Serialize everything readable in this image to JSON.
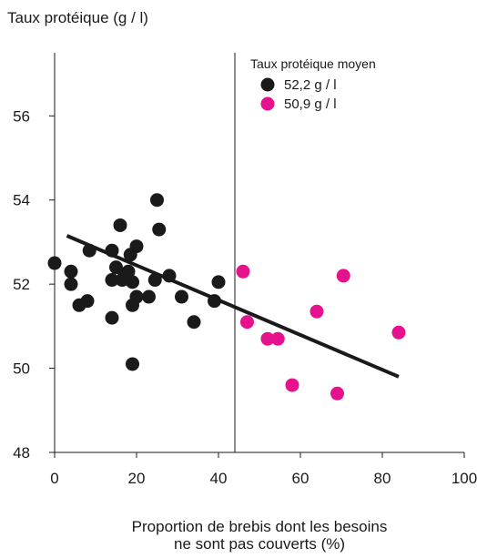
{
  "chart_data": {
    "type": "scatter",
    "ylabel": "Taux protéique (g / l)",
    "xlabel_lines": [
      "Proportion de brebis dont les besoins",
      "ne sont pas couverts (%)"
    ],
    "xlim": [
      0,
      100
    ],
    "ylim": [
      48,
      57.5
    ],
    "x_ticks": [
      0,
      20,
      40,
      60,
      80,
      100
    ],
    "y_ticks": [
      48,
      50,
      52,
      54,
      56
    ],
    "grid": false,
    "legend": {
      "title": "Taux protéique moyen",
      "placement": "top-right",
      "entries": [
        "52,2 g / l",
        "50,9 g / l"
      ]
    },
    "threshold_x": 44,
    "trend_line": {
      "x": [
        3,
        84
      ],
      "y": [
        53.15,
        49.8
      ]
    },
    "series": [
      {
        "name": "52,2 g / l",
        "color": "#1a1a1a",
        "points": [
          [
            0,
            52.5
          ],
          [
            4,
            52.3
          ],
          [
            4,
            52.0
          ],
          [
            6,
            51.5
          ],
          [
            8,
            51.6
          ],
          [
            8.5,
            52.8
          ],
          [
            14,
            52.8
          ],
          [
            14,
            52.1
          ],
          [
            14,
            51.2
          ],
          [
            15,
            52.4
          ],
          [
            16,
            53.4
          ],
          [
            16.5,
            52.1
          ],
          [
            17,
            52.2
          ],
          [
            18,
            52.3
          ],
          [
            18.5,
            52.7
          ],
          [
            19,
            52.05
          ],
          [
            19,
            51.5
          ],
          [
            19,
            50.1
          ],
          [
            20,
            52.9
          ],
          [
            20,
            51.7
          ],
          [
            23,
            51.7
          ],
          [
            24.5,
            52.1
          ],
          [
            25,
            54.0
          ],
          [
            25.5,
            53.3
          ],
          [
            28,
            52.2
          ],
          [
            31,
            51.7
          ],
          [
            34,
            51.1
          ],
          [
            39,
            51.6
          ],
          [
            40,
            52.05
          ]
        ]
      },
      {
        "name": "50,9 g / l",
        "color": "#e6118c",
        "points": [
          [
            46,
            52.3
          ],
          [
            47,
            51.1
          ],
          [
            52,
            50.7
          ],
          [
            54.5,
            50.7
          ],
          [
            58,
            49.6
          ],
          [
            64,
            51.35
          ],
          [
            69,
            49.4
          ],
          [
            70.5,
            52.2
          ],
          [
            84,
            50.85
          ]
        ]
      }
    ]
  }
}
